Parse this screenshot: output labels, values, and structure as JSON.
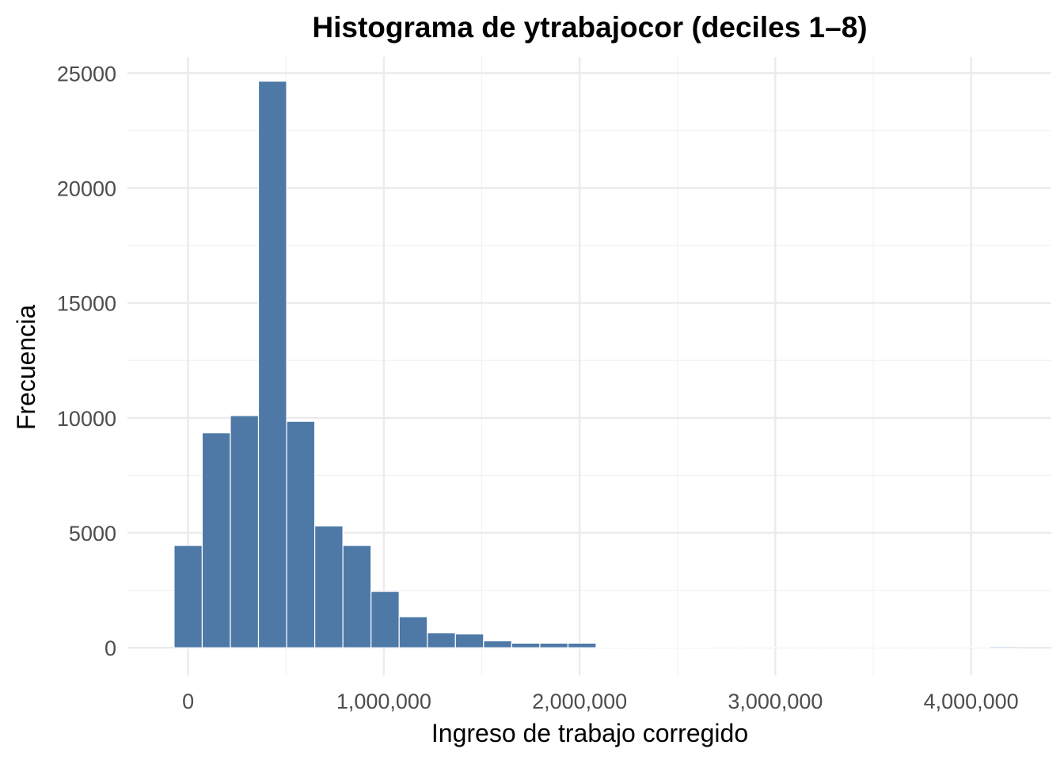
{
  "chart_data": {
    "type": "bar",
    "title": "Histograma de ytrabajocor (deciles 1–8)",
    "xlabel": "Ingreso de trabajo corregido",
    "ylabel": "Frecuencia",
    "xlim": [
      -310000,
      4410000
    ],
    "ylim": [
      -1200,
      25700
    ],
    "x_ticks": [
      0,
      1000000,
      2000000,
      3000000,
      4000000
    ],
    "x_tick_labels": [
      "0",
      "1,000,000",
      "2,000,000",
      "3,000,000",
      "4,000,000"
    ],
    "y_ticks": [
      0,
      5000,
      10000,
      15000,
      20000,
      25000
    ],
    "y_tick_labels": [
      "0",
      "5000",
      "10000",
      "15000",
      "20000",
      "25000"
    ],
    "bin_width": 143750,
    "bin_centers": [
      0,
      143750,
      287500,
      431250,
      575000,
      718750,
      862500,
      1006250,
      1150000,
      1293750,
      1437500,
      1581250,
      1725000,
      1868750,
      2012500,
      2156250,
      2300000,
      2443750,
      2587500,
      2731250,
      2875000,
      3018750,
      3162500,
      3306250,
      3450000,
      3593750,
      3737500,
      3881250,
      4025000,
      4168750
    ],
    "values": [
      4450,
      9350,
      10100,
      24650,
      9850,
      5300,
      4450,
      2450,
      1350,
      650,
      600,
      300,
      200,
      200,
      200,
      40,
      30,
      25,
      20,
      15,
      15,
      10,
      10,
      10,
      10,
      10,
      10,
      10,
      10,
      50
    ],
    "grid": true,
    "colors": {
      "bar_fill": "#4e79a7",
      "bar_stroke": "#ffffff",
      "grid_major": "#ebebeb",
      "grid_minor": "#f2f2f2",
      "background": "#ffffff"
    }
  }
}
